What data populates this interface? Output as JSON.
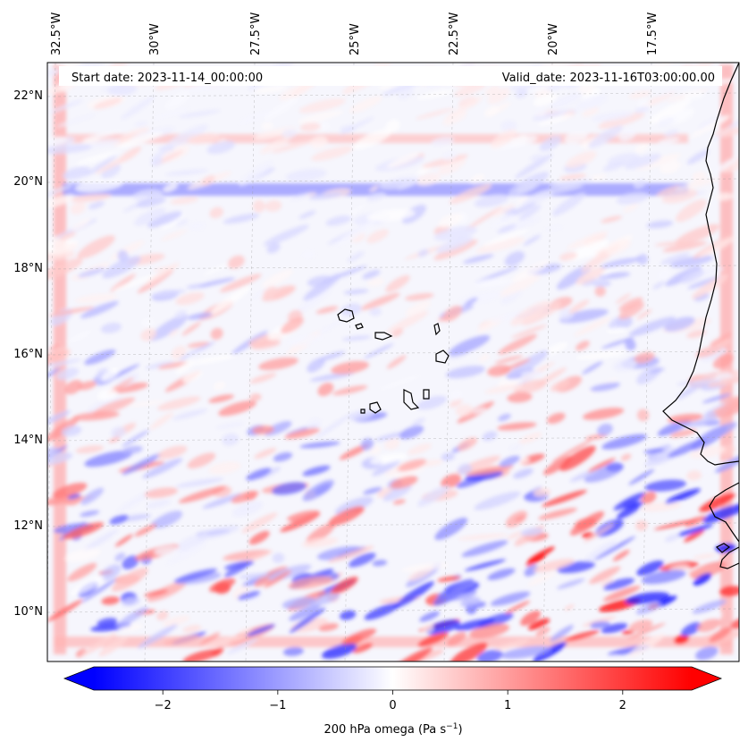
{
  "map": {
    "start_date": "Start date: 2023-11-14_00:00:00",
    "valid_date": "Valid_date: 2023-11-16T03:00:00.00",
    "longitude_labels": [
      "32.5°W",
      "30°W",
      "27.5°W",
      "25°W",
      "22.5°W",
      "20°W",
      "17.5°W"
    ],
    "latitude_labels": [
      "22°N",
      "20°N",
      "18°N",
      "16°N",
      "14°N",
      "12°N",
      "10°N"
    ],
    "colormap": "bwr",
    "gridlines": true,
    "coastline_color": "#000000"
  },
  "colorbar": {
    "ticks": [
      -2,
      -1,
      0,
      1,
      2
    ],
    "tick_labels": [
      "−2",
      "−1",
      "0",
      "1",
      "2"
    ],
    "range": [
      -2.6,
      2.6
    ],
    "extend": "both",
    "label_main": "200 hPa omega (Pa s",
    "label_exp": "−1",
    "label_end": ")",
    "color_min": "#0000ff",
    "color_mid": "#ffffff",
    "color_max": "#ff0000"
  }
}
